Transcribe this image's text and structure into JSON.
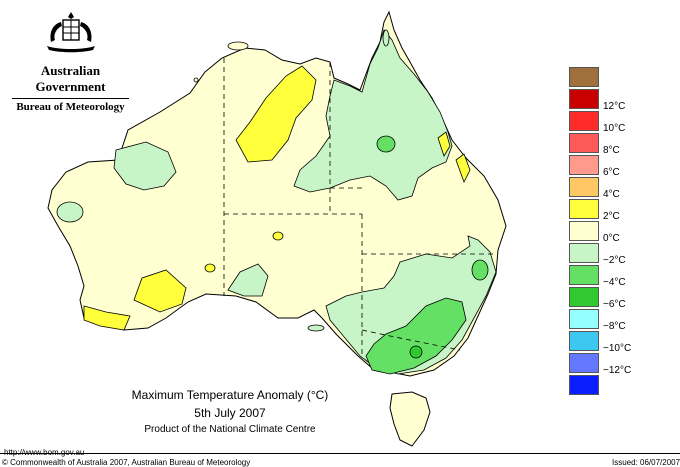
{
  "header": {
    "agency": "Australian Government",
    "bureau": "Bureau of Meteorology"
  },
  "map": {
    "title": "Maximum Temperature Anomaly (°C)",
    "date": "5th July 2007",
    "product": "Product of the National Climate Centre"
  },
  "legend": {
    "items": [
      {
        "label": "",
        "color": "#a0703c"
      },
      {
        "label": "12°C",
        "color": "#c80000"
      },
      {
        "label": "10°C",
        "color": "#ff2a2a"
      },
      {
        "label": "8°C",
        "color": "#ff5a5a"
      },
      {
        "label": "6°C",
        "color": "#ff9a8c"
      },
      {
        "label": "4°C",
        "color": "#ffc864"
      },
      {
        "label": "2°C",
        "color": "#ffff3c"
      },
      {
        "label": "0°C",
        "color": "#ffffd2"
      },
      {
        "label": "−2°C",
        "color": "#c8f5c8"
      },
      {
        "label": "−4°C",
        "color": "#64e164"
      },
      {
        "label": "−6°C",
        "color": "#32c832"
      },
      {
        "label": "−8°C",
        "color": "#96ffff"
      },
      {
        "label": "−10°C",
        "color": "#3cc8f0"
      },
      {
        "label": "−12°C",
        "color": "#6478ff"
      },
      {
        "label": "",
        "color": "#0a1eff"
      }
    ]
  },
  "footer": {
    "url": "http://www.bom.gov.au",
    "copyright": "© Commonwealth of Australia 2007, Australian Bureau of Meteorology",
    "issued": "Issued: 06/07/2007"
  }
}
